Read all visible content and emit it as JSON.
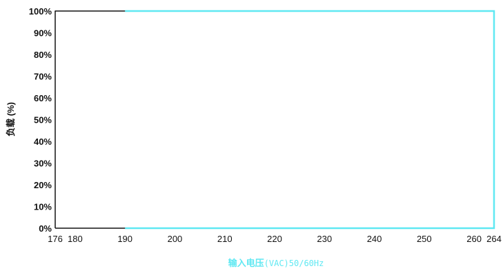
{
  "chart_data": {
    "type": "area",
    "title": "",
    "ylabel": "负载 (%)",
    "xlabel": "输入电压",
    "xlabel_unit": "(VAC)50/60Hz",
    "x_ticks": [
      "176",
      "180",
      "190",
      "200",
      "210",
      "220",
      "230",
      "240",
      "250",
      "260",
      "264"
    ],
    "y_ticks": [
      "0%",
      "10%",
      "20%",
      "30%",
      "40%",
      "50%",
      "60%",
      "70%",
      "80%",
      "90%",
      "100%"
    ],
    "xlim": [
      176,
      264
    ],
    "ylim": [
      0,
      100
    ],
    "grid": false,
    "series": [
      {
        "x": [
          176,
          264,
          264
        ],
        "y": [
          100,
          100,
          0
        ]
      }
    ],
    "colors": {
      "axis": "#111111",
      "overlay": "#5fe8f2"
    }
  }
}
